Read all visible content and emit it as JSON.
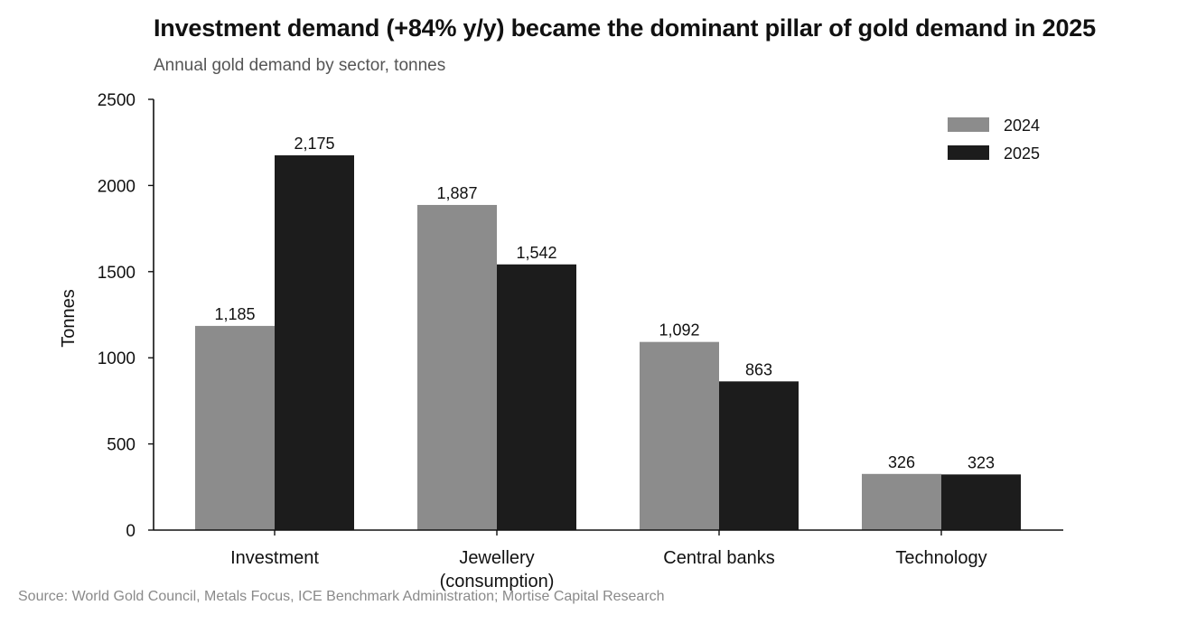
{
  "title": "Investment demand (+84% y/y) became the dominant pillar of gold demand in 2025",
  "subtitle": "Annual gold demand by sector, tonnes",
  "source": "Source: World Gold Council, Metals Focus, ICE Benchmark Administration; Mortise Capital Research",
  "chart_data": {
    "type": "bar",
    "title": "Investment demand (+84% y/y) became the dominant pillar of gold demand in 2025",
    "subtitle": "Annual gold demand by sector, tonnes",
    "xlabel": "",
    "ylabel": "Tonnes",
    "ylim": [
      0,
      2500
    ],
    "yticks": [
      0,
      500,
      1000,
      1500,
      2000,
      2500
    ],
    "categories": [
      "Investment",
      "Jewellery\n(consumption)",
      "Central banks",
      "Technology"
    ],
    "series": [
      {
        "name": "2024",
        "values": [
          1185,
          1887,
          1092,
          326
        ],
        "labels": [
          "1,185",
          "1,887",
          "1,092",
          "326"
        ],
        "color": "#8c8c8c"
      },
      {
        "name": "2025",
        "values": [
          2175,
          1542,
          863,
          323
        ],
        "labels": [
          "2,175",
          "1,542",
          "863",
          "323"
        ],
        "color": "#1c1c1c"
      }
    ],
    "legend": "top-right",
    "grid": false
  }
}
